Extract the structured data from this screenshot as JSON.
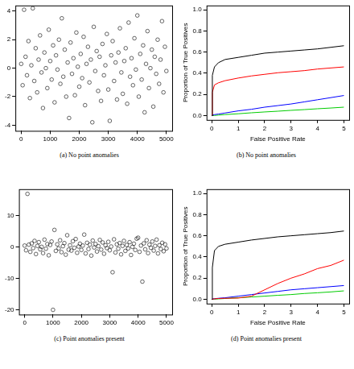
{
  "chart_data": [
    {
      "type": "scatter",
      "title": "(a) No point anomalies",
      "xlim": [
        -200,
        5200
      ],
      "xticks": [
        0,
        1000,
        2000,
        3000,
        4000,
        5000
      ],
      "ylim": [
        -4.4,
        4.4
      ],
      "yticks": [
        -4,
        -2,
        0,
        2,
        4
      ],
      "grid": false,
      "x": [
        0,
        50,
        100,
        150,
        200,
        250,
        300,
        350,
        400,
        450,
        500,
        550,
        600,
        650,
        700,
        750,
        800,
        850,
        900,
        950,
        1000,
        1050,
        1100,
        1150,
        1200,
        1250,
        1300,
        1350,
        1400,
        1450,
        1500,
        1550,
        1600,
        1650,
        1700,
        1750,
        1800,
        1850,
        1900,
        1950,
        2000,
        2050,
        2100,
        2150,
        2200,
        2250,
        2300,
        2350,
        2400,
        2450,
        2500,
        2550,
        2600,
        2650,
        2700,
        2750,
        2800,
        2850,
        2900,
        2950,
        3000,
        3050,
        3100,
        3150,
        3200,
        3250,
        3300,
        3350,
        3400,
        3450,
        3500,
        3550,
        3600,
        3650,
        3700,
        3750,
        3800,
        3850,
        3900,
        3950,
        4000,
        4050,
        4100,
        4150,
        4200,
        4250,
        4300,
        4350,
        4400,
        4450,
        4500,
        4550,
        4600,
        4650,
        4700,
        4750,
        4800,
        4850,
        4900,
        4950,
        5000
      ],
      "series": [
        {
          "color": "#000000",
          "marker": "open_circle",
          "values": [
            0.3,
            -1.2,
            4.1,
            0.8,
            -0.5,
            1.9,
            -2.1,
            0.2,
            4.2,
            -0.9,
            1.4,
            -1.7,
            0.6,
            2.3,
            -0.3,
            -2.8,
            1.1,
            0.0,
            -1.4,
            2.7,
            0.5,
            -0.8,
            1.6,
            -2.4,
            0.9,
            -0.1,
            2.0,
            -1.1,
            3.5,
            -0.6,
            1.3,
            -2.0,
            0.4,
            -3.5,
            1.8,
            -0.4,
            0.7,
            -1.9,
            2.5,
            0.1,
            -1.3,
            1.0,
            -0.7,
            2.2,
            -2.6,
            0.3,
            1.5,
            -1.0,
            0.6,
            -3.8,
            2.9,
            -0.2,
            1.2,
            -1.6,
            0.8,
            -2.3,
            1.7,
            -0.5,
            0.2,
            2.4,
            -1.5,
            -3.7,
            0.9,
            1.9,
            -0.9,
            0.4,
            -2.2,
            1.1,
            2.8,
            -0.3,
            -1.8,
            0.5,
            1.4,
            -2.5,
            3.2,
            -0.6,
            0.7,
            -1.2,
            2.1,
            -0.1,
            3.7,
            -2.0,
            1.0,
            -0.8,
            1.6,
            -3.1,
            0.3,
            2.6,
            -1.4,
            0.0,
            1.3,
            -2.7,
            0.8,
            -0.4,
            2.0,
            -1.1,
            0.6,
            3.3,
            -1.7,
            1.5,
            -0.2
          ]
        }
      ]
    },
    {
      "type": "line",
      "title": "(b) No point anomalies",
      "x_label": "False Positive Rate",
      "y_label": "Proportion of True Positives",
      "xlim": [
        -0.2,
        5.2
      ],
      "xticks": [
        0,
        1,
        2,
        3,
        4,
        5
      ],
      "ylim": [
        -0.04,
        1.04
      ],
      "yticks": [
        {
          "value": 0,
          "label": "0.0"
        },
        0.2,
        0.4,
        0.6,
        0.8,
        {
          "value": 1,
          "label": "1.0"
        }
      ],
      "grid": false,
      "x": [
        0,
        0.02,
        0.1,
        0.25,
        0.5,
        1,
        1.5,
        2,
        2.5,
        3,
        3.5,
        4,
        4.5,
        5
      ],
      "series": [
        {
          "color": "#000000",
          "line_style": "solid",
          "values": [
            0,
            0.38,
            0.46,
            0.5,
            0.53,
            0.55,
            0.57,
            0.59,
            0.6,
            0.61,
            0.62,
            0.63,
            0.645,
            0.66
          ]
        },
        {
          "color": "#ff0000",
          "line_style": "solid",
          "values": [
            0,
            0.22,
            0.29,
            0.31,
            0.33,
            0.355,
            0.375,
            0.39,
            0.405,
            0.415,
            0.425,
            0.44,
            0.45,
            0.46
          ]
        },
        {
          "color": "#0000ff",
          "line_style": "solid",
          "values": [
            0,
            0.005,
            0.01,
            0.015,
            0.025,
            0.045,
            0.06,
            0.08,
            0.095,
            0.11,
            0.13,
            0.15,
            0.17,
            0.19
          ]
        },
        {
          "color": "#00cc00",
          "line_style": "solid",
          "values": [
            0,
            0,
            0.002,
            0.005,
            0.01,
            0.018,
            0.027,
            0.035,
            0.042,
            0.05,
            0.057,
            0.065,
            0.072,
            0.08
          ]
        }
      ]
    },
    {
      "type": "scatter",
      "title": "(c) Point anomalies present",
      "xlim": [
        -200,
        5200
      ],
      "xticks": [
        0,
        1000,
        2000,
        3000,
        4000,
        5000
      ],
      "ylim": [
        -21.5,
        18.5
      ],
      "yticks": [
        -20,
        -10,
        0,
        10
      ],
      "grid": false,
      "x": [
        0,
        50,
        100,
        150,
        200,
        250,
        300,
        350,
        400,
        450,
        500,
        550,
        600,
        650,
        700,
        750,
        800,
        850,
        900,
        950,
        1000,
        1050,
        1100,
        1150,
        1200,
        1250,
        1300,
        1350,
        1400,
        1450,
        1500,
        1550,
        1600,
        1650,
        1700,
        1750,
        1800,
        1850,
        1900,
        1950,
        2000,
        2050,
        2100,
        2150,
        2200,
        2250,
        2300,
        2350,
        2400,
        2450,
        2500,
        2550,
        2600,
        2650,
        2700,
        2750,
        2800,
        2850,
        2900,
        2950,
        3000,
        3050,
        3100,
        3150,
        3200,
        3250,
        3300,
        3350,
        3400,
        3450,
        3500,
        3550,
        3600,
        3650,
        3700,
        3750,
        3800,
        3850,
        3900,
        3950,
        4000,
        4050,
        4100,
        4150,
        4200,
        4250,
        4300,
        4350,
        4400,
        4450,
        4500,
        4550,
        4600,
        4650,
        4700,
        4750,
        4800,
        4850,
        4900,
        4950,
        5000
      ],
      "series": [
        {
          "color": "#000000",
          "marker": "open_circle",
          "values": [
            0.5,
            -1.0,
            17,
            0.8,
            -1.5,
            1.2,
            -0.3,
            2.0,
            -2.2,
            0.4,
            1.6,
            -0.7,
            0.1,
            -1.9,
            2.4,
            -0.5,
            1.0,
            -2.6,
            0.7,
            1.8,
            -20,
            5.5,
            -1.2,
            0.9,
            -0.4,
            2.2,
            -1.6,
            0.3,
            1.3,
            -2.4,
            3.8,
            -0.8,
            0.6,
            -1.1,
            1.9,
            -0.2,
            2.6,
            -1.8,
            0.2,
            1.1,
            -0.9,
            0.5,
            4.0,
            -2.0,
            1.4,
            -0.6,
            0.8,
            -2.7,
            2.1,
            -0.1,
            1.0,
            -1.4,
            0.3,
            2.3,
            -0.8,
            1.5,
            -2.1,
            0.6,
            -0.3,
            1.7,
            -1.0,
            0.2,
            -8,
            2.5,
            -1.7,
            0.9,
            -0.5,
            1.3,
            -2.3,
            0.4,
            2.0,
            -1.2,
            0.7,
            -0.4,
            1.6,
            -2.5,
            0.1,
            1.1,
            -0.9,
            2.7,
            3.0,
            -1.5,
            0.5,
            -11,
            1.2,
            -0.7,
            2.2,
            -1.9,
            0.8,
            -0.2,
            1.8,
            -1.1,
            0.4,
            2.4,
            -2.0,
            0.6,
            -0.6,
            1.4,
            -1.3,
            0.9,
            -0.4
          ]
        }
      ]
    },
    {
      "type": "line",
      "title": "(d) Point anomalies present",
      "x_label": "False Positive Rate",
      "y_label": "Proportion of True Positives",
      "xlim": [
        -0.2,
        5.2
      ],
      "xticks": [
        0,
        1,
        2,
        3,
        4,
        5
      ],
      "ylim": [
        -0.04,
        1.04
      ],
      "yticks": [
        {
          "value": 0,
          "label": "0.0"
        },
        0.2,
        0.4,
        0.6,
        0.8,
        {
          "value": 1,
          "label": "1.0"
        }
      ],
      "grid": false,
      "x": [
        0,
        0.02,
        0.1,
        0.25,
        0.5,
        1,
        1.5,
        2,
        2.5,
        3,
        3.5,
        4,
        4.5,
        5
      ],
      "series": [
        {
          "color": "#000000",
          "line_style": "solid",
          "values": [
            0,
            0.3,
            0.46,
            0.5,
            0.52,
            0.54,
            0.56,
            0.575,
            0.59,
            0.6,
            0.61,
            0.62,
            0.63,
            0.645
          ]
        },
        {
          "color": "#ff0000",
          "line_style": "solid",
          "values": [
            0,
            0,
            0.005,
            0.008,
            0.01,
            0.012,
            0.03,
            0.09,
            0.15,
            0.2,
            0.24,
            0.29,
            0.32,
            0.37
          ]
        },
        {
          "color": "#0000ff",
          "line_style": "solid",
          "values": [
            0,
            0.003,
            0.006,
            0.01,
            0.015,
            0.03,
            0.045,
            0.06,
            0.075,
            0.09,
            0.1,
            0.11,
            0.12,
            0.13
          ]
        },
        {
          "color": "#00cc00",
          "line_style": "solid",
          "values": [
            0,
            0,
            0.002,
            0.004,
            0.008,
            0.015,
            0.022,
            0.03,
            0.038,
            0.045,
            0.055,
            0.062,
            0.07,
            0.08
          ]
        }
      ]
    }
  ]
}
